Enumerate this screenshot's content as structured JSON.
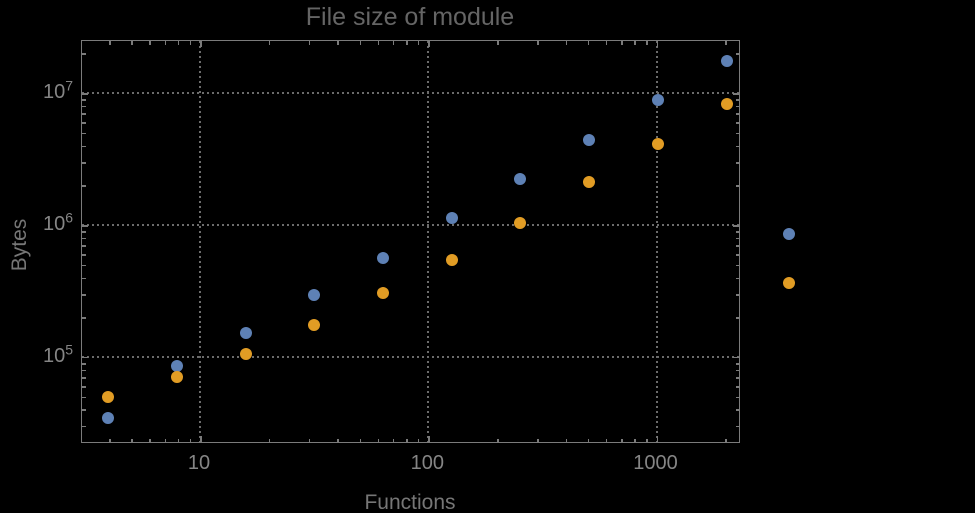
{
  "figure": {
    "background_color": "#000000"
  },
  "colors": {
    "series_blue": "#5e81b5",
    "series_orange": "#e19c24",
    "frame": "#7b7b7b",
    "gridline": "#6c6c6c",
    "title_text": "#656565",
    "axis_label_text": "#767676",
    "tick_label_text": "#858585"
  },
  "chart_data": {
    "type": "scatter",
    "title": "File size of module",
    "xlabel": "Functions",
    "ylabel": "Bytes",
    "x_scale": "log",
    "y_scale": "log",
    "xlim": [
      3.04,
      2344
    ],
    "ylim": [
      21900,
      24800000
    ],
    "grid": "dotted gray lines at decade ticks, frame on all four sides with inward ticks",
    "legend": "none",
    "x_major_ticks": [
      {
        "value": 10,
        "label": "10"
      },
      {
        "value": 100,
        "label": "100"
      },
      {
        "value": 1000,
        "label": "1000"
      }
    ],
    "y_major_ticks": [
      {
        "value": 100000,
        "base": "10",
        "exponent": "5"
      },
      {
        "value": 1000000,
        "base": "10",
        "exponent": "6"
      },
      {
        "value": 10000000,
        "base": "10",
        "exponent": "7"
      }
    ],
    "x_minor_ticks": [
      4,
      5,
      6,
      7,
      8,
      9,
      20,
      30,
      40,
      50,
      60,
      70,
      80,
      90,
      200,
      300,
      400,
      500,
      600,
      700,
      800,
      900,
      2000
    ],
    "y_minor_ticks": [
      30000,
      40000,
      50000,
      60000,
      70000,
      80000,
      90000,
      200000,
      300000,
      400000,
      500000,
      600000,
      700000,
      800000,
      900000,
      2000000,
      3000000,
      4000000,
      5000000,
      6000000,
      7000000,
      8000000,
      9000000,
      20000000
    ],
    "series": [
      {
        "name": "series-blue",
        "color": "#5e81b5",
        "points": [
          {
            "x": 4,
            "y": 34000
          },
          {
            "x": 8,
            "y": 84000
          },
          {
            "x": 16,
            "y": 150000
          },
          {
            "x": 32,
            "y": 290000
          },
          {
            "x": 64,
            "y": 550000
          },
          {
            "x": 128,
            "y": 1120000
          },
          {
            "x": 256,
            "y": 2190000
          },
          {
            "x": 512,
            "y": 4330000
          },
          {
            "x": 1024,
            "y": 8700000
          },
          {
            "x": 2048,
            "y": 17200000
          },
          {
            "x": 3850,
            "y": 840000
          }
        ]
      },
      {
        "name": "series-orange",
        "color": "#e19c24",
        "points": [
          {
            "x": 4,
            "y": 49000
          },
          {
            "x": 8,
            "y": 69000
          },
          {
            "x": 16,
            "y": 104000
          },
          {
            "x": 32,
            "y": 172000
          },
          {
            "x": 64,
            "y": 300000
          },
          {
            "x": 128,
            "y": 533000
          },
          {
            "x": 256,
            "y": 1020000
          },
          {
            "x": 512,
            "y": 2080000
          },
          {
            "x": 1024,
            "y": 4030000
          },
          {
            "x": 2048,
            "y": 8100000
          },
          {
            "x": 3850,
            "y": 360000
          }
        ]
      }
    ]
  }
}
